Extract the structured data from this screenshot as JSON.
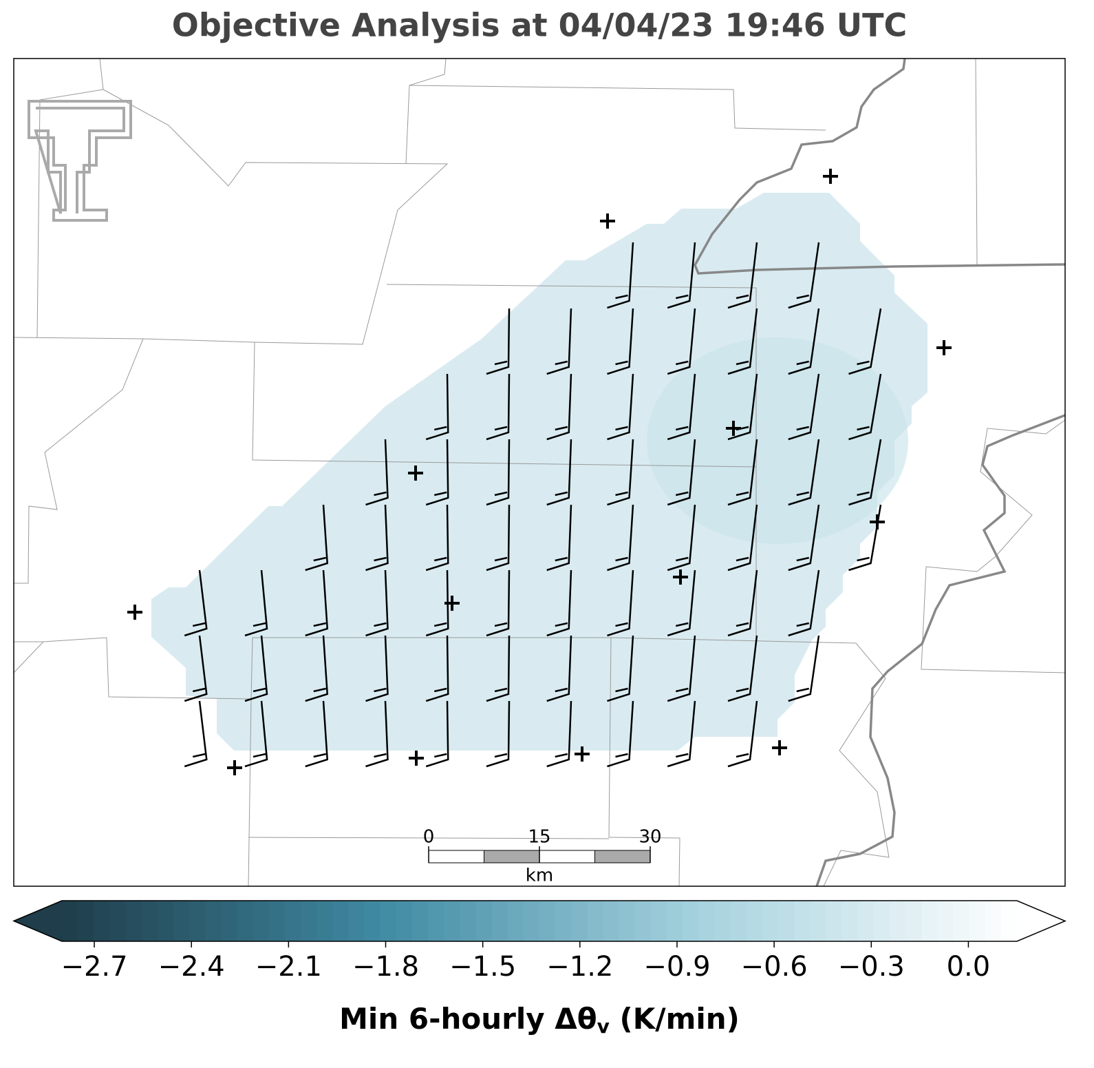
{
  "title": "Objective Analysis at 04/04/23 19:46 UTC",
  "colorbar": {
    "label": [
      "Min 6-hourly Δθ",
      "v",
      " (K/min)"
    ],
    "clim": [
      -2.8,
      0.15
    ],
    "ticks": [
      {
        "value": -2.7,
        "label": "−2.7"
      },
      {
        "value": -2.4,
        "label": "−2.4"
      },
      {
        "value": -2.1,
        "label": "−2.1"
      },
      {
        "value": -1.8,
        "label": "−1.8"
      },
      {
        "value": -1.5,
        "label": "−1.5"
      },
      {
        "value": -1.2,
        "label": "−1.2"
      },
      {
        "value": -0.9,
        "label": "−0.9"
      },
      {
        "value": -0.6,
        "label": "−0.6"
      },
      {
        "value": -0.3,
        "label": "−0.3"
      },
      {
        "value": 0,
        "label": "0.0"
      }
    ],
    "colormap": [
      "#1f3d4a",
      "#3f8aa3",
      "#a6d2de",
      "#ffffff"
    ]
  },
  "scale_bar": {
    "ticks": [
      0,
      15,
      30
    ],
    "unit": "km"
  }
}
